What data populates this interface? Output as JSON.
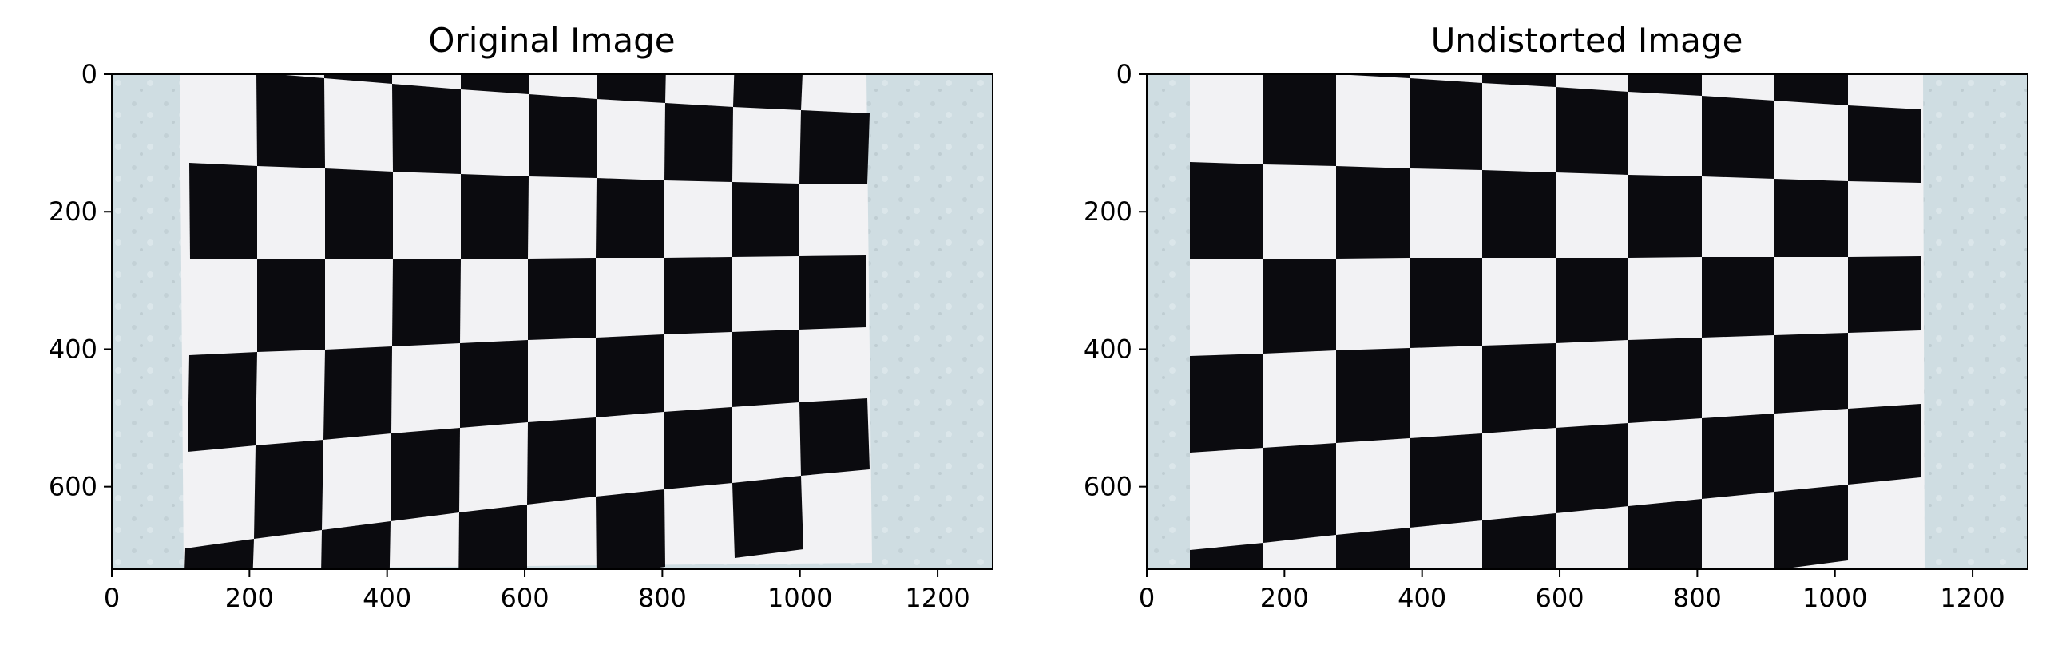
{
  "panels": [
    {
      "title": "Original Image",
      "x_ticks": [
        "0",
        "200",
        "400",
        "600",
        "800",
        "1000",
        "1200"
      ],
      "y_ticks": [
        "0",
        "200",
        "400",
        "600"
      ],
      "image_description_colors": {
        "background_wall": "#d0dde2",
        "paper": "#f2f2f4",
        "squares": "#0a0a0e"
      }
    },
    {
      "title": "Undistorted Image",
      "x_ticks": [
        "0",
        "200",
        "400",
        "600",
        "800",
        "1000",
        "1200"
      ],
      "y_ticks": [
        "0",
        "200",
        "400",
        "600"
      ],
      "image_description_colors": {
        "background_wall": "#d0dde2",
        "paper": "#f2f2f4",
        "squares": "#0a0a0e"
      }
    }
  ]
}
